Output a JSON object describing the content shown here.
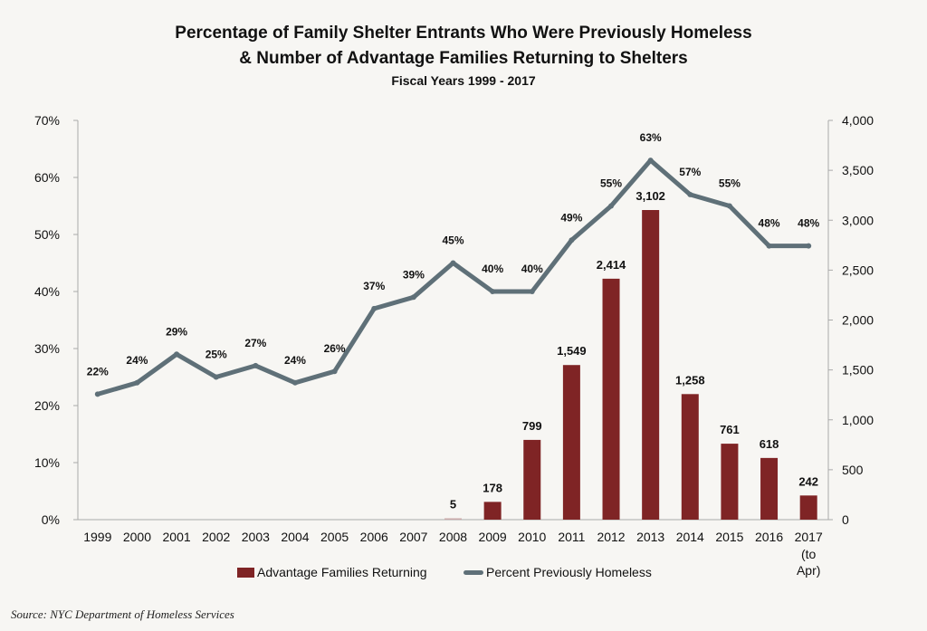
{
  "chart_data": {
    "type": "bar",
    "title": "Percentage of Family Shelter Entrants Who Were Previously Homeless",
    "title_line2": "& Number of Advantage Families Returning to Shelters",
    "subtitle": "Fiscal Years 1999 - 2017",
    "categories": [
      "1999",
      "2000",
      "2001",
      "2002",
      "2003",
      "2004",
      "2005",
      "2006",
      "2007",
      "2008",
      "2009",
      "2010",
      "2011",
      "2012",
      "2013",
      "2014",
      "2015",
      "2016",
      "2017"
    ],
    "category_sublabels": {
      "2017": [
        "(to",
        "Apr)"
      ]
    },
    "series": [
      {
        "name": "Advantage Families Returning",
        "type": "bar",
        "axis": "right",
        "color": "#7f2425",
        "values": [
          null,
          null,
          null,
          null,
          null,
          null,
          null,
          null,
          null,
          5,
          178,
          799,
          1549,
          2414,
          3102,
          1258,
          761,
          618,
          242
        ],
        "labels": [
          null,
          null,
          null,
          null,
          null,
          null,
          null,
          null,
          null,
          "5",
          "178",
          "799",
          "1,549",
          "2,414",
          "3,102",
          "1,258",
          "761",
          "618",
          "242"
        ]
      },
      {
        "name": "Percent Previously Homeless",
        "type": "line",
        "axis": "left",
        "color": "#5f7078",
        "values": [
          22,
          24,
          29,
          25,
          27,
          24,
          26,
          37,
          39,
          45,
          40,
          40,
          49,
          55,
          63,
          57,
          55,
          48,
          48
        ],
        "labels": [
          "22%",
          "24%",
          "29%",
          "25%",
          "27%",
          "24%",
          "26%",
          "37%",
          "39%",
          "45%",
          "40%",
          "40%",
          "49%",
          "55%",
          "63%",
          "57%",
          "55%",
          "48%",
          "48%"
        ]
      }
    ],
    "y_left": {
      "ylim": [
        0,
        70
      ],
      "ticks": [
        "0%",
        "10%",
        "20%",
        "30%",
        "40%",
        "50%",
        "60%",
        "70%"
      ],
      "tick_values": [
        0,
        10,
        20,
        30,
        40,
        50,
        60,
        70
      ]
    },
    "y_right": {
      "ylim": [
        0,
        4000
      ],
      "ticks": [
        "0",
        "500",
        "1,000",
        "1,500",
        "2,000",
        "2,500",
        "3,000",
        "3,500",
        "4,000"
      ],
      "tick_values": [
        0,
        500,
        1000,
        1500,
        2000,
        2500,
        3000,
        3500,
        4000
      ]
    },
    "xlabel": "",
    "ylabel": "",
    "grid": false,
    "legend_position": "bottom",
    "legend": [
      "Advantage Families Returning",
      "Percent Previously Homeless"
    ]
  },
  "source": "Source:  NYC Department of Homeless Services"
}
